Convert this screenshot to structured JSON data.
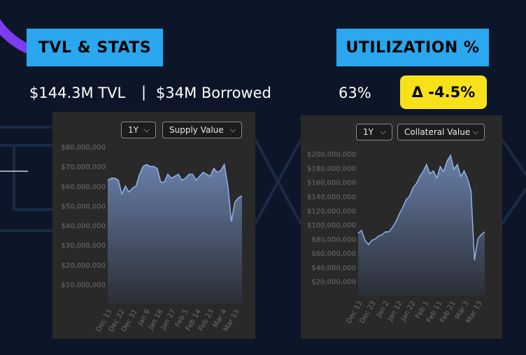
{
  "header": {
    "tvl_tag": "TVL & STATS",
    "util_tag": "UTILIZATION %",
    "tvl_stat": "$144.3M TVL",
    "separator": "|",
    "borrowed_stat": "$34M Borrowed",
    "utilization_value": "63%",
    "delta": "Δ -4.5%"
  },
  "colors": {
    "tag_bg": "#2aa7ee",
    "delta_bg": "#f7e21a",
    "line": "#8fb2e6",
    "page_bg": "#0d1628"
  },
  "chart_data": [
    {
      "type": "area",
      "range_selector": "1Y",
      "metric_selector": "Supply Value",
      "ylim": [
        0,
        80000000
      ],
      "ytick_values": [
        10000000,
        20000000,
        30000000,
        40000000,
        50000000,
        60000000,
        70000000,
        80000000
      ],
      "ytick_labels": [
        "$10,000,000",
        "$20,000,000",
        "$30,000,000",
        "$40,000,000",
        "$50,000,000",
        "$60,000,000",
        "$70,000,000",
        "$80,000,000"
      ],
      "xtick_labels": [
        "Dec 13",
        "Dec 22",
        "Dec 31",
        "Jan 9",
        "Jan 18",
        "Jan 27",
        "Feb 5",
        "Feb 14",
        "Feb 23",
        "Mar 4",
        "Mar 13"
      ],
      "values": [
        63000000,
        64000000,
        64000000,
        63000000,
        56000000,
        60000000,
        57000000,
        59000000,
        60000000,
        66000000,
        70000000,
        71000000,
        70000000,
        70000000,
        69000000,
        62000000,
        62000000,
        66000000,
        64000000,
        65000000,
        66000000,
        63000000,
        64000000,
        66000000,
        66000000,
        63000000,
        65000000,
        67000000,
        66000000,
        65000000,
        69000000,
        67000000,
        68000000,
        71000000,
        60000000,
        42000000,
        52000000,
        54000000,
        55000000
      ]
    },
    {
      "type": "area",
      "range_selector": "1Y",
      "metric_selector": "Collateral Value",
      "ylim": [
        0,
        210000000
      ],
      "ytick_values": [
        20000000,
        40000000,
        60000000,
        80000000,
        100000000,
        120000000,
        140000000,
        160000000,
        180000000,
        200000000
      ],
      "ytick_labels": [
        "$20,000,000",
        "$40,000,000",
        "$60,000,000",
        "$80,000,000",
        "$100,000,000",
        "$120,000,000",
        "$140,000,000",
        "$160,000,000",
        "$180,000,000",
        "$200,000,000"
      ],
      "xtick_labels": [
        "Dec 13",
        "Dec 23",
        "Jan 2",
        "Jan 12",
        "Jan 22",
        "Feb 1",
        "Feb 11",
        "Feb 21",
        "Mar 3",
        "Mar 13"
      ],
      "values": [
        88000000,
        92000000,
        78000000,
        72000000,
        78000000,
        80000000,
        84000000,
        86000000,
        90000000,
        90000000,
        96000000,
        104000000,
        115000000,
        124000000,
        135000000,
        140000000,
        152000000,
        158000000,
        168000000,
        175000000,
        185000000,
        172000000,
        176000000,
        166000000,
        182000000,
        175000000,
        190000000,
        198000000,
        178000000,
        185000000,
        168000000,
        176000000,
        165000000,
        148000000,
        50000000,
        80000000,
        86000000,
        90000000
      ]
    }
  ]
}
